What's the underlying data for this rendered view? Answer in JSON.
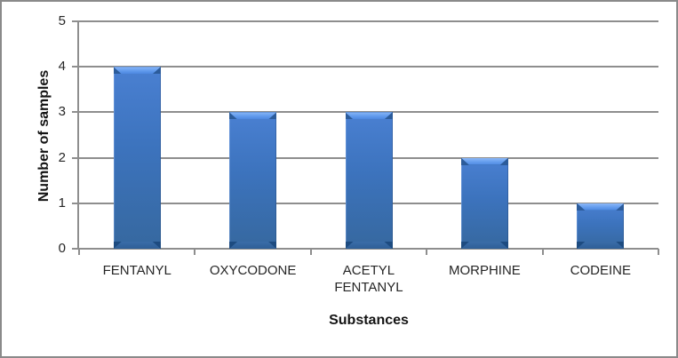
{
  "window": {
    "background": "#ffffff",
    "border_color": "#8a8a8a"
  },
  "chart_data": {
    "type": "bar",
    "title": "",
    "categories": [
      "FENTANYL",
      "OXYCODONE",
      "ACETYL FENTANYL",
      "MORPHINE",
      "CODEINE"
    ],
    "values": [
      4,
      3,
      3,
      2,
      1
    ],
    "xlabel": "Substances",
    "ylabel": "Number of samples",
    "ylim": [
      0,
      5
    ],
    "yticks": [
      0,
      1,
      2,
      3,
      4,
      5
    ],
    "grid": true,
    "legend": false,
    "colors": {
      "bar_body": "#3c73bd",
      "bar_highlight": "#8cb8f8",
      "bar_shadow": "#1d4b80",
      "gridline": "#8e8e8e",
      "axis": "#8e8e8e",
      "text": "#262626",
      "title_text": "#141414"
    }
  }
}
